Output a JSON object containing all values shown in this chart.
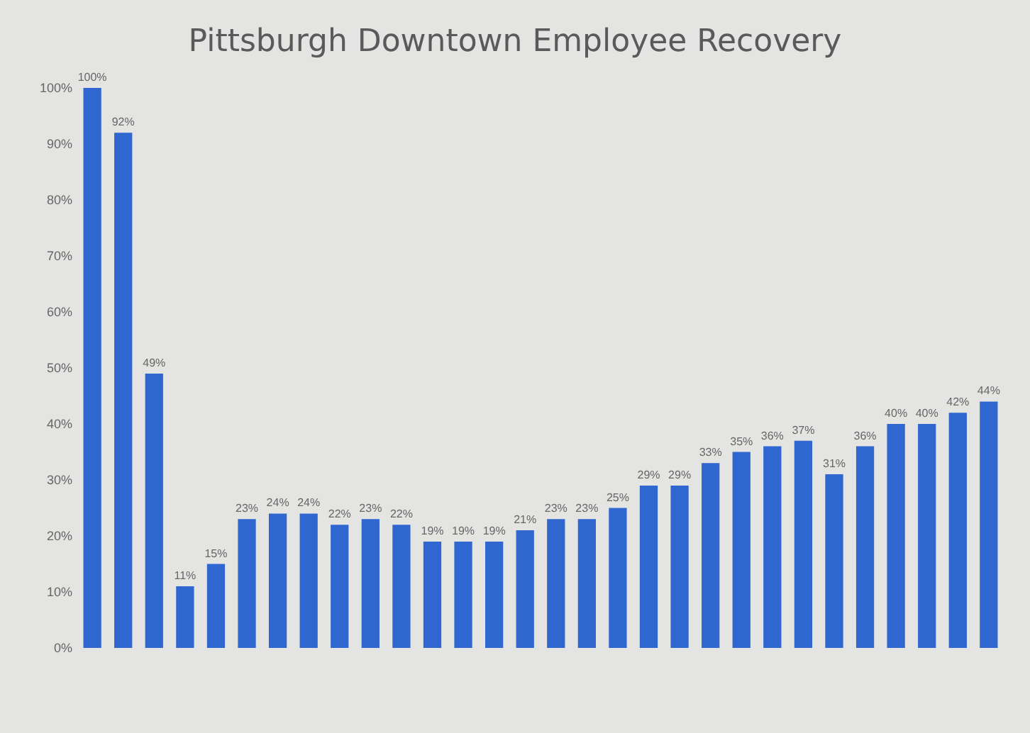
{
  "chart_data": {
    "type": "bar",
    "title": "Pittsburgh Downtown Employee Recovery",
    "categories": [
      null,
      null,
      null,
      null,
      null,
      null,
      null,
      null,
      null,
      null,
      null,
      null,
      null,
      null,
      null,
      null,
      null,
      null,
      null,
      null,
      null,
      null,
      null,
      null,
      null,
      null,
      null,
      null,
      null,
      null
    ],
    "values": [
      100,
      92,
      49,
      11,
      15,
      23,
      24,
      24,
      22,
      23,
      22,
      19,
      19,
      19,
      21,
      23,
      23,
      25,
      29,
      29,
      33,
      35,
      36,
      37,
      31,
      36,
      40,
      40,
      42,
      44
    ],
    "value_labels": [
      "100%",
      "92%",
      "49%",
      "11%",
      "15%",
      "23%",
      "24%",
      "24%",
      "22%",
      "23%",
      "22%",
      "19%",
      "19%",
      "19%",
      "21%",
      "23%",
      "23%",
      "25%",
      "29%",
      "29%",
      "33%",
      "35%",
      "36%",
      "37%",
      "31%",
      "36%",
      "40%",
      "40%",
      "42%",
      "44%"
    ],
    "color": "#2f66cf",
    "ylim": [
      0,
      100
    ],
    "yticks": [
      {
        "value": 0,
        "label": "0%"
      },
      {
        "value": 10,
        "label": "10%"
      },
      {
        "value": 20,
        "label": "20%"
      },
      {
        "value": 30,
        "label": "30%"
      },
      {
        "value": 40,
        "label": "40%"
      },
      {
        "value": 50,
        "label": "50%"
      },
      {
        "value": 60,
        "label": "60%"
      },
      {
        "value": 70,
        "label": "70%"
      },
      {
        "value": 80,
        "label": "80%"
      },
      {
        "value": 90,
        "label": "90%"
      },
      {
        "value": 100,
        "label": "100%"
      }
    ],
    "grid": false
  }
}
